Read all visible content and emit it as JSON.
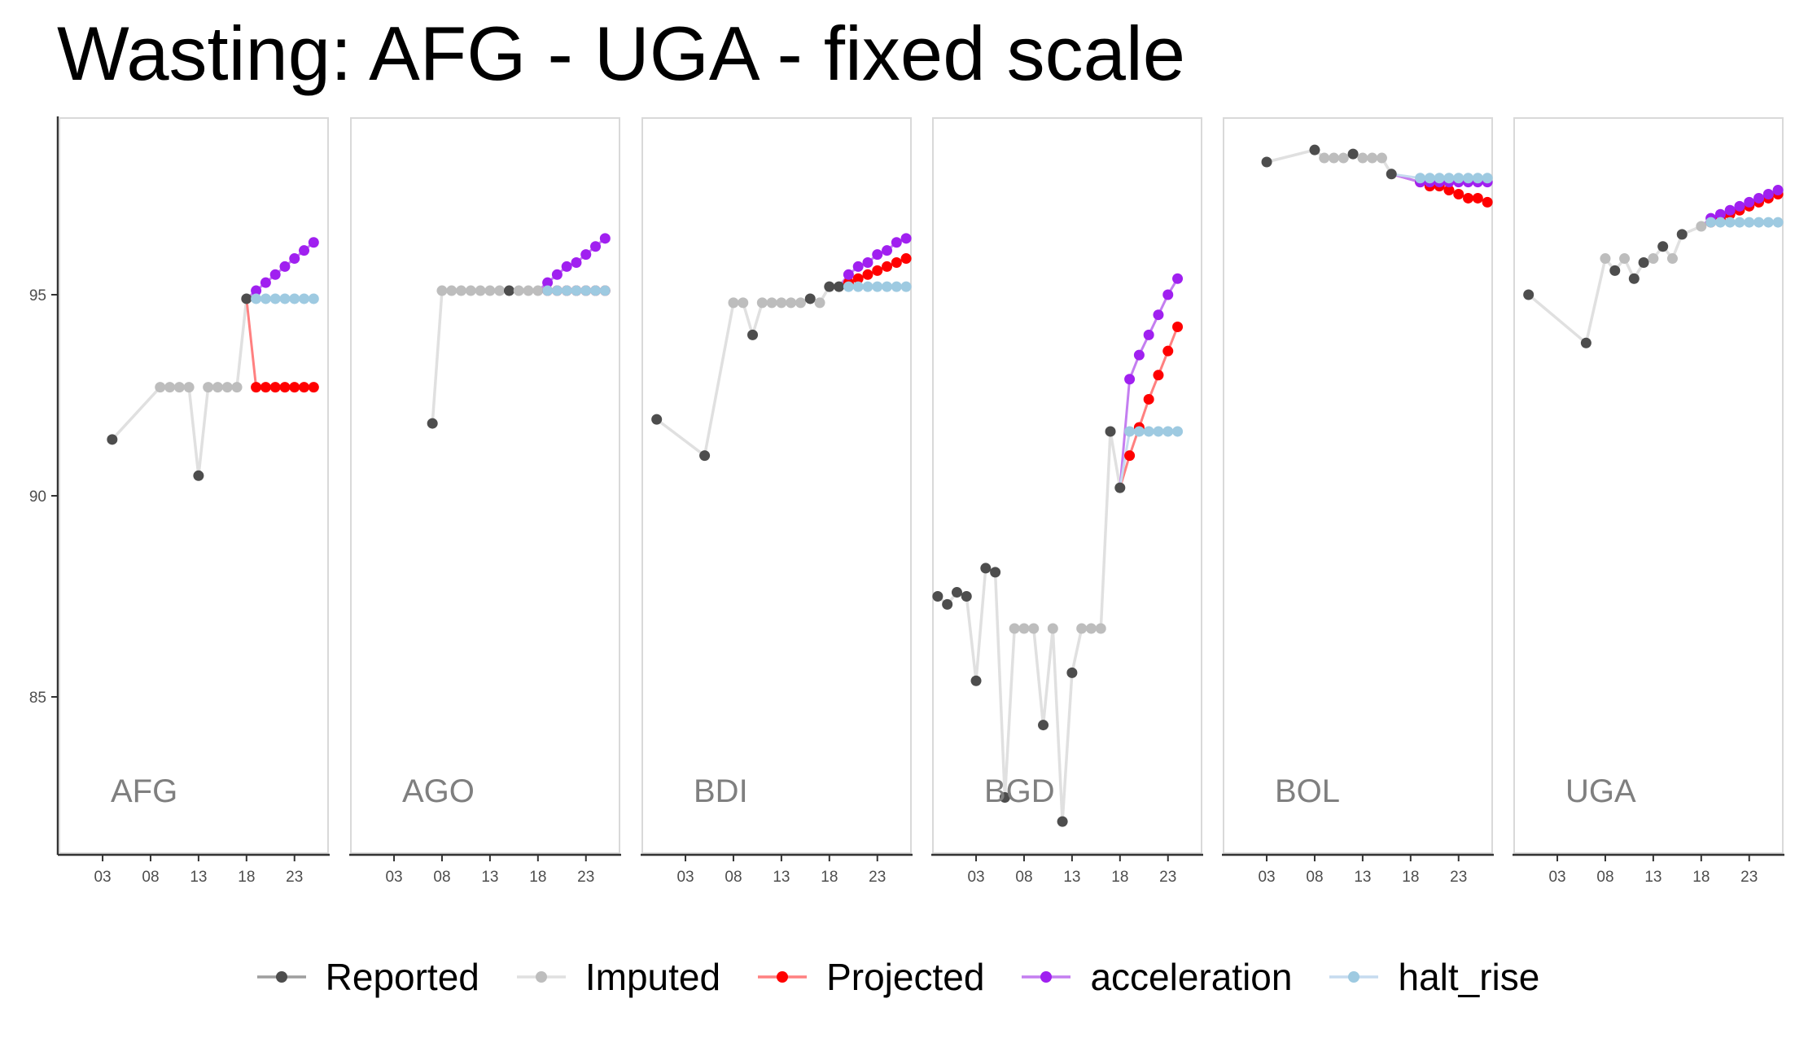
{
  "title": "Wasting: AFG - UGA - fixed scale",
  "colors": {
    "Reported": "#4d4d4d",
    "Imputed": "#bdbdbd",
    "Projected": "#ff0000",
    "acceleration": "#a020f0",
    "halt_rise": "#9ecae1",
    "reported_line": "#e0e0e0",
    "projected_line": "#ff8080",
    "acceleration_line": "#c47ef0",
    "halt_rise_line": "#c6dbef"
  },
  "legend": [
    {
      "key": "Reported",
      "label": "Reported"
    },
    {
      "key": "Imputed",
      "label": "Imputed"
    },
    {
      "key": "Projected",
      "label": "Projected"
    },
    {
      "key": "acceleration",
      "label": "acceleration"
    },
    {
      "key": "halt_rise",
      "label": "halt_rise"
    }
  ],
  "chart_data": {
    "type": "line",
    "facets": [
      "AFG",
      "AGO",
      "BDI",
      "BGD",
      "BOL",
      "UGA"
    ],
    "ylim": [
      81,
      96.5
    ],
    "yticks": [
      85,
      90,
      95
    ],
    "xlim": [
      1998.5,
      2026.5
    ],
    "xticks": [
      2003,
      2008,
      2013,
      2018,
      2023
    ],
    "xtick_labels": [
      "03",
      "08",
      "13",
      "18",
      "23"
    ],
    "panels": [
      {
        "label": "AFG",
        "history": [
          [
            2004,
            91.4,
            "Reported"
          ],
          [
            2009,
            92.7,
            "Imputed"
          ],
          [
            2010,
            92.7,
            "Imputed"
          ],
          [
            2011,
            92.7,
            "Imputed"
          ],
          [
            2012,
            92.7,
            "Imputed"
          ],
          [
            2013,
            90.5,
            "Reported"
          ],
          [
            2014,
            92.7,
            "Imputed"
          ],
          [
            2015,
            92.7,
            "Imputed"
          ],
          [
            2016,
            92.7,
            "Imputed"
          ],
          [
            2017,
            92.7,
            "Imputed"
          ],
          [
            2018,
            94.9,
            "Reported"
          ]
        ],
        "projected": [
          [
            2019,
            92.7
          ],
          [
            2020,
            92.7
          ],
          [
            2021,
            92.7
          ],
          [
            2022,
            92.7
          ],
          [
            2023,
            92.7
          ],
          [
            2024,
            92.7
          ],
          [
            2025,
            92.7
          ]
        ],
        "acceleration": [
          [
            2019,
            95.1
          ],
          [
            2020,
            95.3
          ],
          [
            2021,
            95.5
          ],
          [
            2022,
            95.7
          ],
          [
            2023,
            95.9
          ],
          [
            2024,
            96.1
          ],
          [
            2025,
            96.3
          ]
        ],
        "halt_rise": [
          [
            2019,
            94.9
          ],
          [
            2020,
            94.9
          ],
          [
            2021,
            94.9
          ],
          [
            2022,
            94.9
          ],
          [
            2023,
            94.9
          ],
          [
            2024,
            94.9
          ],
          [
            2025,
            94.9
          ]
        ]
      },
      {
        "label": "AGO",
        "history": [
          [
            2007,
            91.8,
            "Reported"
          ],
          [
            2008,
            95.1,
            "Imputed"
          ],
          [
            2009,
            95.1,
            "Imputed"
          ],
          [
            2010,
            95.1,
            "Imputed"
          ],
          [
            2011,
            95.1,
            "Imputed"
          ],
          [
            2012,
            95.1,
            "Imputed"
          ],
          [
            2013,
            95.1,
            "Imputed"
          ],
          [
            2014,
            95.1,
            "Imputed"
          ],
          [
            2015,
            95.1,
            "Reported"
          ],
          [
            2016,
            95.1,
            "Imputed"
          ],
          [
            2017,
            95.1,
            "Imputed"
          ],
          [
            2018,
            95.1,
            "Imputed"
          ]
        ],
        "projected": [
          [
            2019,
            95.1
          ],
          [
            2020,
            95.1
          ],
          [
            2021,
            95.1
          ],
          [
            2022,
            95.1
          ],
          [
            2023,
            95.1
          ],
          [
            2024,
            95.1
          ],
          [
            2025,
            95.1
          ]
        ],
        "acceleration": [
          [
            2019,
            95.3
          ],
          [
            2020,
            95.5
          ],
          [
            2021,
            95.7
          ],
          [
            2022,
            95.8
          ],
          [
            2023,
            96.0
          ],
          [
            2024,
            96.2
          ],
          [
            2025,
            96.4
          ]
        ],
        "halt_rise": [
          [
            2019,
            95.1
          ],
          [
            2020,
            95.1
          ],
          [
            2021,
            95.1
          ],
          [
            2022,
            95.1
          ],
          [
            2023,
            95.1
          ],
          [
            2024,
            95.1
          ],
          [
            2025,
            95.1
          ]
        ]
      },
      {
        "label": "BDI",
        "history": [
          [
            2000,
            91.9,
            "Reported"
          ],
          [
            2005,
            91.0,
            "Reported"
          ],
          [
            2008,
            94.8,
            "Imputed"
          ],
          [
            2009,
            94.8,
            "Imputed"
          ],
          [
            2010,
            94.0,
            "Reported"
          ],
          [
            2011,
            94.8,
            "Imputed"
          ],
          [
            2012,
            94.8,
            "Imputed"
          ],
          [
            2013,
            94.8,
            "Imputed"
          ],
          [
            2014,
            94.8,
            "Imputed"
          ],
          [
            2015,
            94.8,
            "Imputed"
          ],
          [
            2016,
            94.9,
            "Reported"
          ],
          [
            2017,
            94.8,
            "Imputed"
          ],
          [
            2018,
            95.2,
            "Reported"
          ],
          [
            2019,
            95.2,
            "Reported"
          ]
        ],
        "projected": [
          [
            2020,
            95.3
          ],
          [
            2021,
            95.4
          ],
          [
            2022,
            95.5
          ],
          [
            2023,
            95.6
          ],
          [
            2024,
            95.7
          ],
          [
            2025,
            95.8
          ],
          [
            2026,
            95.9
          ]
        ],
        "acceleration": [
          [
            2020,
            95.5
          ],
          [
            2021,
            95.7
          ],
          [
            2022,
            95.8
          ],
          [
            2023,
            96.0
          ],
          [
            2024,
            96.1
          ],
          [
            2025,
            96.3
          ],
          [
            2026,
            96.4
          ]
        ],
        "halt_rise": [
          [
            2020,
            95.2
          ],
          [
            2021,
            95.2
          ],
          [
            2022,
            95.2
          ],
          [
            2023,
            95.2
          ],
          [
            2024,
            95.2
          ],
          [
            2025,
            95.2
          ],
          [
            2026,
            95.2
          ]
        ]
      },
      {
        "label": "BGD",
        "history": [
          [
            1999,
            87.5,
            "Reported"
          ],
          [
            2000,
            87.3,
            "Reported"
          ],
          [
            2001,
            87.6,
            "Reported"
          ],
          [
            2002,
            87.5,
            "Reported"
          ],
          [
            2003,
            85.4,
            "Reported"
          ],
          [
            2004,
            88.2,
            "Reported"
          ],
          [
            2005,
            88.1,
            "Reported"
          ],
          [
            2006,
            82.5,
            "Reported"
          ],
          [
            2007,
            86.7,
            "Imputed"
          ],
          [
            2008,
            86.7,
            "Imputed"
          ],
          [
            2009,
            86.7,
            "Imputed"
          ],
          [
            2010,
            84.3,
            "Reported"
          ],
          [
            2011,
            86.7,
            "Imputed"
          ],
          [
            2012,
            81.9,
            "Reported"
          ],
          [
            2013,
            85.6,
            "Reported"
          ],
          [
            2014,
            86.7,
            "Imputed"
          ],
          [
            2015,
            86.7,
            "Imputed"
          ],
          [
            2016,
            86.7,
            "Imputed"
          ],
          [
            2017,
            91.6,
            "Reported"
          ],
          [
            2018,
            90.2,
            "Reported"
          ]
        ],
        "projected": [
          [
            2019,
            91.0
          ],
          [
            2020,
            91.7
          ],
          [
            2021,
            92.4
          ],
          [
            2022,
            93.0
          ],
          [
            2023,
            93.6
          ],
          [
            2024,
            94.2
          ]
        ],
        "acceleration": [
          [
            2019,
            92.9
          ],
          [
            2020,
            93.5
          ],
          [
            2021,
            94.0
          ],
          [
            2022,
            94.5
          ],
          [
            2023,
            95.0
          ],
          [
            2024,
            95.4
          ]
        ],
        "halt_rise": [
          [
            2019,
            91.6
          ],
          [
            2020,
            91.6
          ],
          [
            2021,
            91.6
          ],
          [
            2022,
            91.6
          ],
          [
            2023,
            91.6
          ],
          [
            2024,
            91.6
          ]
        ]
      },
      {
        "label": "BOL",
        "history": [
          [
            2003,
            98.3,
            "Reported"
          ],
          [
            2008,
            98.6,
            "Reported"
          ],
          [
            2009,
            98.4,
            "Imputed"
          ],
          [
            2010,
            98.4,
            "Imputed"
          ],
          [
            2011,
            98.4,
            "Imputed"
          ],
          [
            2012,
            98.5,
            "Reported"
          ],
          [
            2013,
            98.4,
            "Imputed"
          ],
          [
            2014,
            98.4,
            "Imputed"
          ],
          [
            2015,
            98.4,
            "Imputed"
          ],
          [
            2016,
            98.0,
            "Reported"
          ]
        ],
        "projected": [
          [
            2019,
            97.8
          ],
          [
            2020,
            97.7
          ],
          [
            2021,
            97.7
          ],
          [
            2022,
            97.6
          ],
          [
            2023,
            97.5
          ],
          [
            2024,
            97.4
          ],
          [
            2025,
            97.4
          ],
          [
            2026,
            97.3
          ]
        ],
        "acceleration": [
          [
            2019,
            97.8
          ],
          [
            2020,
            97.8
          ],
          [
            2021,
            97.8
          ],
          [
            2022,
            97.8
          ],
          [
            2023,
            97.8
          ],
          [
            2024,
            97.8
          ],
          [
            2025,
            97.8
          ],
          [
            2026,
            97.8
          ]
        ],
        "halt_rise": [
          [
            2019,
            97.9
          ],
          [
            2020,
            97.9
          ],
          [
            2021,
            97.9
          ],
          [
            2022,
            97.9
          ],
          [
            2023,
            97.9
          ],
          [
            2024,
            97.9
          ],
          [
            2025,
            97.9
          ],
          [
            2026,
            97.9
          ]
        ]
      },
      {
        "label": "UGA",
        "history": [
          [
            2000,
            95.0,
            "Reported"
          ],
          [
            2006,
            93.8,
            "Reported"
          ],
          [
            2008,
            95.9,
            "Imputed"
          ],
          [
            2009,
            95.6,
            "Reported"
          ],
          [
            2010,
            95.9,
            "Imputed"
          ],
          [
            2011,
            95.4,
            "Reported"
          ],
          [
            2012,
            95.8,
            "Reported"
          ],
          [
            2013,
            95.9,
            "Imputed"
          ],
          [
            2014,
            96.2,
            "Reported"
          ],
          [
            2015,
            95.9,
            "Imputed"
          ],
          [
            2016,
            96.5,
            "Reported"
          ],
          [
            2018,
            96.7,
            "Imputed"
          ]
        ],
        "projected": [
          [
            2019,
            96.8
          ],
          [
            2020,
            96.9
          ],
          [
            2021,
            97.0
          ],
          [
            2022,
            97.1
          ],
          [
            2023,
            97.2
          ],
          [
            2024,
            97.3
          ],
          [
            2025,
            97.4
          ],
          [
            2026,
            97.5
          ]
        ],
        "acceleration": [
          [
            2019,
            96.9
          ],
          [
            2020,
            97.0
          ],
          [
            2021,
            97.1
          ],
          [
            2022,
            97.2
          ],
          [
            2023,
            97.3
          ],
          [
            2024,
            97.4
          ],
          [
            2025,
            97.5
          ],
          [
            2026,
            97.6
          ]
        ],
        "halt_rise": [
          [
            2019,
            96.8
          ],
          [
            2020,
            96.8
          ],
          [
            2021,
            96.8
          ],
          [
            2022,
            96.8
          ],
          [
            2023,
            96.8
          ],
          [
            2024,
            96.8
          ],
          [
            2025,
            96.8
          ],
          [
            2026,
            96.8
          ]
        ]
      }
    ]
  }
}
